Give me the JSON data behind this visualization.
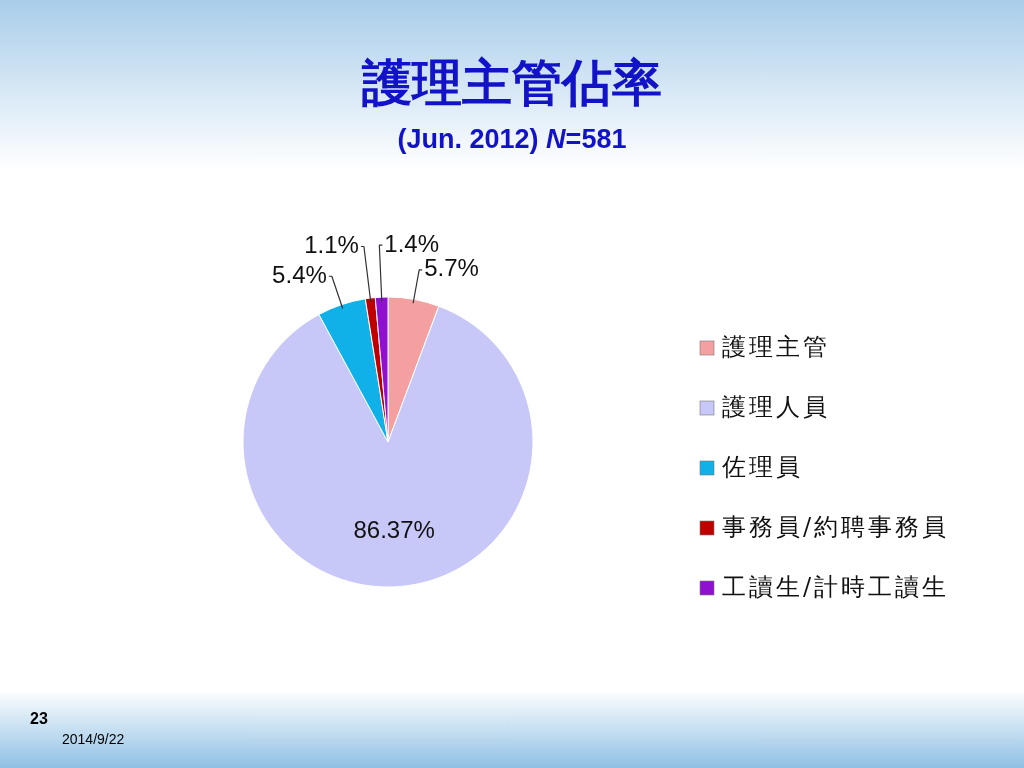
{
  "chart_data": {
    "type": "pie",
    "title": "護理主管佔率",
    "subtitle": "(Jun. 2012) *N*=581",
    "categories": [
      "護理主管",
      "護理人員",
      "佐理員",
      "事務員/約聘事務員",
      "工讀生/計時工讀生"
    ],
    "values": [
      5.7,
      86.37,
      5.4,
      1.1,
      1.4
    ],
    "colors": [
      "#f4a0a0",
      "#c8c8f8",
      "#10b0e8",
      "#c00000",
      "#9010d0"
    ],
    "value_labels": [
      "5.7%",
      "86.37%",
      "5.4%",
      "1.1%",
      "1.4%"
    ],
    "legend": "right",
    "annotations": [
      "23",
      "2014/9/22"
    ]
  }
}
